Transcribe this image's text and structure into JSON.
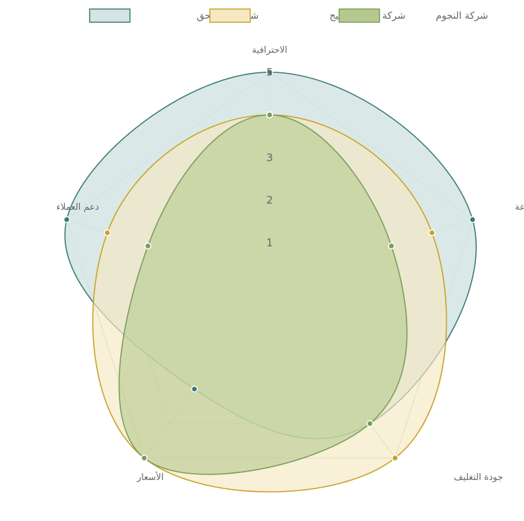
{
  "chart_data": {
    "type": "radar",
    "axes": [
      "الاحترافية",
      "السرعة",
      "جودة التغليف",
      "الأسعار",
      "دعم العملاء"
    ],
    "r_min": 0,
    "r_max": 5,
    "ticks": [
      1,
      2,
      3,
      4,
      5
    ],
    "tick_labels": [
      "1",
      "2",
      "3",
      "",
      "5"
    ],
    "legend_position": "top",
    "series": [
      {
        "name": "شركة نور الحق",
        "values": [
          5,
          5,
          4,
          3,
          5
        ],
        "stroke": "#3a7d73",
        "fill": "#d4e5e3"
      },
      {
        "name": "شركة بسمة الخليج",
        "values": [
          4,
          4,
          5,
          5,
          4
        ],
        "stroke": "#c9a227",
        "fill": "#f6e8c3"
      },
      {
        "name": "شركة النجوم",
        "values": [
          4,
          3,
          4,
          5,
          3
        ],
        "stroke": "#7a9e5a",
        "fill": "#b5c98f"
      }
    ]
  }
}
